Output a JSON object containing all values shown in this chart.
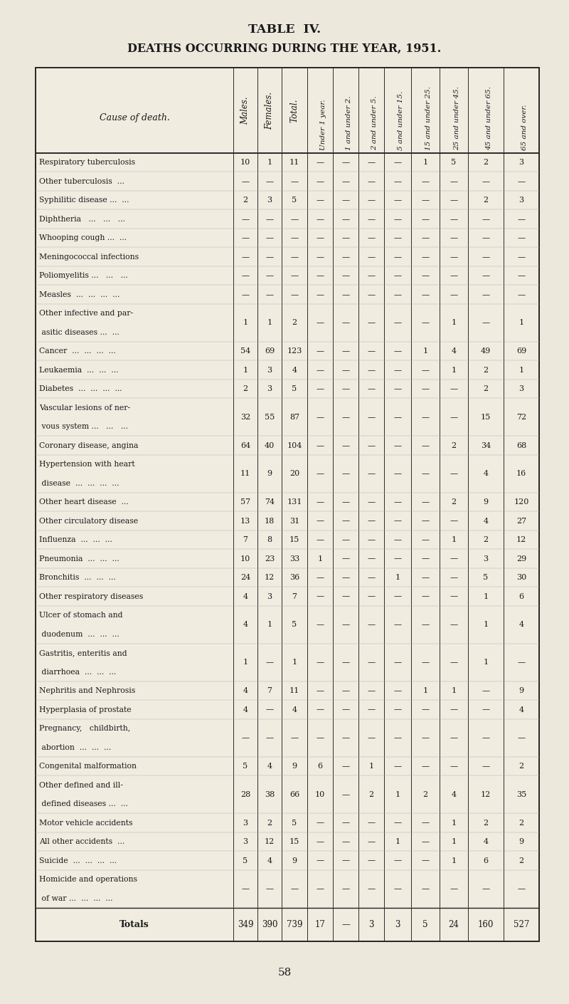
{
  "title1": "TABLE  IV.",
  "title2": "DEATHS OCCURRING DURING THE YEAR, 1951.",
  "page_number": "58",
  "rows": [
    {
      "cause": [
        "Respiratory tuberculosis"
      ],
      "m": "10",
      "f": "1",
      "t": "11",
      "u1": "—",
      "1u2": "—",
      "2u5": "—",
      "5u15": "—",
      "15u25": "1",
      "25u45": "5",
      "45u65": "2",
      "65p": "3"
    },
    {
      "cause": [
        "Other tuberculosis  ..."
      ],
      "m": "—",
      "f": "—",
      "t": "—",
      "u1": "—",
      "1u2": "—",
      "2u5": "—",
      "5u15": "—",
      "15u25": "—",
      "25u45": "—",
      "45u65": "—",
      "65p": "—"
    },
    {
      "cause": [
        "Syphilitic disease ...  ..."
      ],
      "m": "2",
      "f": "3",
      "t": "5",
      "u1": "—",
      "1u2": "—",
      "2u5": "—",
      "5u15": "—",
      "15u25": "—",
      "25u45": "—",
      "45u65": "2",
      "65p": "3"
    },
    {
      "cause": [
        "Diphtheria   ...   ...   ..."
      ],
      "m": "—",
      "f": "—",
      "t": "—",
      "u1": "—",
      "1u2": "—",
      "2u5": "—",
      "5u15": "—",
      "15u25": "—",
      "25u45": "—",
      "45u65": "—",
      "65p": "—"
    },
    {
      "cause": [
        "Whooping cough ...  ..."
      ],
      "m": "—",
      "f": "—",
      "t": "—",
      "u1": "—",
      "1u2": "—",
      "2u5": "—",
      "5u15": "—",
      "15u25": "—",
      "25u45": "—",
      "45u65": "—",
      "65p": "—"
    },
    {
      "cause": [
        "Meningococcal infections"
      ],
      "m": "—",
      "f": "—",
      "t": "—",
      "u1": "—",
      "1u2": "—",
      "2u5": "—",
      "5u15": "—",
      "15u25": "—",
      "25u45": "—",
      "45u65": "—",
      "65p": "—"
    },
    {
      "cause": [
        "Poliomyelitis ...   ...   ..."
      ],
      "m": "—",
      "f": "—",
      "t": "—",
      "u1": "—",
      "1u2": "—",
      "2u5": "—",
      "5u15": "—",
      "15u25": "—",
      "25u45": "—",
      "45u65": "—",
      "65p": "—"
    },
    {
      "cause": [
        "Measles  ...  ...  ...  ..."
      ],
      "m": "—",
      "f": "—",
      "t": "—",
      "u1": "—",
      "1u2": "—",
      "2u5": "—",
      "5u15": "—",
      "15u25": "—",
      "25u45": "—",
      "45u65": "—",
      "65p": "—"
    },
    {
      "cause": [
        "Other infective and par-",
        " asitic diseases ...  ..."
      ],
      "m": "1",
      "f": "1",
      "t": "2",
      "u1": "—",
      "1u2": "—",
      "2u5": "—",
      "5u15": "—",
      "15u25": "—",
      "25u45": "1",
      "45u65": "—",
      "65p": "1"
    },
    {
      "cause": [
        "Cancer  ...  ...  ...  ..."
      ],
      "m": "54",
      "f": "69",
      "t": "123",
      "u1": "—",
      "1u2": "—",
      "2u5": "—",
      "5u15": "—",
      "15u25": "1",
      "25u45": "4",
      "45u65": "49",
      "65p": "69"
    },
    {
      "cause": [
        "Leukaemia  ...  ...  ..."
      ],
      "m": "1",
      "f": "3",
      "t": "4",
      "u1": "—",
      "1u2": "—",
      "2u5": "—",
      "5u15": "—",
      "15u25": "—",
      "25u45": "1",
      "45u65": "2",
      "65p": "1"
    },
    {
      "cause": [
        "Diabetes  ...  ...  ...  ..."
      ],
      "m": "2",
      "f": "3",
      "t": "5",
      "u1": "—",
      "1u2": "—",
      "2u5": "—",
      "5u15": "—",
      "15u25": "—",
      "25u45": "—",
      "45u65": "2",
      "65p": "3"
    },
    {
      "cause": [
        "Vascular lesions of ner-",
        " vous system ...   ...   ..."
      ],
      "m": "32",
      "f": "55",
      "t": "87",
      "u1": "—",
      "1u2": "—",
      "2u5": "—",
      "5u15": "—",
      "15u25": "—",
      "25u45": "—",
      "45u65": "15",
      "65p": "72"
    },
    {
      "cause": [
        "Coronary disease, angina"
      ],
      "m": "64",
      "f": "40",
      "t": "104",
      "u1": "—",
      "1u2": "—",
      "2u5": "—",
      "5u15": "—",
      "15u25": "—",
      "25u45": "2",
      "45u65": "34",
      "65p": "68"
    },
    {
      "cause": [
        "Hypertension with heart",
        " disease  ...  ...  ...  ..."
      ],
      "m": "11",
      "f": "9",
      "t": "20",
      "u1": "—",
      "1u2": "—",
      "2u5": "—",
      "5u15": "—",
      "15u25": "—",
      "25u45": "—",
      "45u65": "4",
      "65p": "16"
    },
    {
      "cause": [
        "Other heart disease  ..."
      ],
      "m": "57",
      "f": "74",
      "t": "131",
      "u1": "—",
      "1u2": "—",
      "2u5": "—",
      "5u15": "—",
      "15u25": "—",
      "25u45": "2",
      "45u65": "9",
      "65p": "120"
    },
    {
      "cause": [
        "Other circulatory disease"
      ],
      "m": "13",
      "f": "18",
      "t": "31",
      "u1": "—",
      "1u2": "—",
      "2u5": "—",
      "5u15": "—",
      "15u25": "—",
      "25u45": "—",
      "45u65": "4",
      "65p": "27"
    },
    {
      "cause": [
        "Influenza  ...  ...  ..."
      ],
      "m": "7",
      "f": "8",
      "t": "15",
      "u1": "—",
      "1u2": "—",
      "2u5": "—",
      "5u15": "—",
      "15u25": "—",
      "25u45": "1",
      "45u65": "2",
      "65p": "12"
    },
    {
      "cause": [
        "Pneumonia  ...  ...  ..."
      ],
      "m": "10",
      "f": "23",
      "t": "33",
      "u1": "1",
      "1u2": "—",
      "2u5": "—",
      "5u15": "—",
      "15u25": "—",
      "25u45": "—",
      "45u65": "3",
      "65p": "29"
    },
    {
      "cause": [
        "Bronchitis  ...  ...  ..."
      ],
      "m": "24",
      "f": "12",
      "t": "36",
      "u1": "—",
      "1u2": "—",
      "2u5": "—",
      "5u15": "1",
      "15u25": "—",
      "25u45": "—",
      "45u65": "5",
      "65p": "30"
    },
    {
      "cause": [
        "Other respiratory diseases"
      ],
      "m": "4",
      "f": "3",
      "t": "7",
      "u1": "—",
      "1u2": "—",
      "2u5": "—",
      "5u15": "—",
      "15u25": "—",
      "25u45": "—",
      "45u65": "1",
      "65p": "6"
    },
    {
      "cause": [
        "Ulcer of stomach and",
        " duodenum  ...  ...  ..."
      ],
      "m": "4",
      "f": "1",
      "t": "5",
      "u1": "—",
      "1u2": "—",
      "2u5": "—",
      "5u15": "—",
      "15u25": "—",
      "25u45": "—",
      "45u65": "1",
      "65p": "4"
    },
    {
      "cause": [
        "Gastritis, enteritis and",
        " diarrhoea  ...  ...  ..."
      ],
      "m": "1",
      "f": "—",
      "t": "1",
      "u1": "—",
      "1u2": "—",
      "2u5": "—",
      "5u15": "—",
      "15u25": "—",
      "25u45": "—",
      "45u65": "1",
      "65p": "—"
    },
    {
      "cause": [
        "Nephritis and Nephrosis"
      ],
      "m": "4",
      "f": "7",
      "t": "11",
      "u1": "—",
      "1u2": "—",
      "2u5": "—",
      "5u15": "—",
      "15u25": "1",
      "25u45": "1",
      "45u65": "—",
      "65p": "9"
    },
    {
      "cause": [
        "Hyperplasia of prostate"
      ],
      "m": "4",
      "f": "—",
      "t": "4",
      "u1": "—",
      "1u2": "—",
      "2u5": "—",
      "5u15": "—",
      "15u25": "—",
      "25u45": "—",
      "45u65": "—",
      "65p": "4"
    },
    {
      "cause": [
        "Pregnancy,   childbirth,",
        " abortion  ...  ...  ..."
      ],
      "m": "—",
      "f": "—",
      "t": "—",
      "u1": "—",
      "1u2": "—",
      "2u5": "—",
      "5u15": "—",
      "15u25": "—",
      "25u45": "—",
      "45u65": "—",
      "65p": "—"
    },
    {
      "cause": [
        "Congenital malformation"
      ],
      "m": "5",
      "f": "4",
      "t": "9",
      "u1": "6",
      "1u2": "—",
      "2u5": "1",
      "5u15": "—",
      "15u25": "—",
      "25u45": "—",
      "45u65": "—",
      "65p": "2"
    },
    {
      "cause": [
        "Other defined and ill-",
        " defined diseases ...  ..."
      ],
      "m": "28",
      "f": "38",
      "t": "66",
      "u1": "10",
      "1u2": "—",
      "2u5": "2",
      "5u15": "1",
      "15u25": "2",
      "25u45": "4",
      "45u65": "12",
      "65p": "35"
    },
    {
      "cause": [
        "Motor vehicle accidents"
      ],
      "m": "3",
      "f": "2",
      "t": "5",
      "u1": "—",
      "1u2": "—",
      "2u5": "—",
      "5u15": "—",
      "15u25": "—",
      "25u45": "1",
      "45u65": "2",
      "65p": "2"
    },
    {
      "cause": [
        "All other accidents  ..."
      ],
      "m": "3",
      "f": "12",
      "t": "15",
      "u1": "—",
      "1u2": "—",
      "2u5": "—",
      "5u15": "1",
      "15u25": "—",
      "25u45": "1",
      "45u65": "4",
      "65p": "9"
    },
    {
      "cause": [
        "Suicide  ...  ...  ...  ..."
      ],
      "m": "5",
      "f": "4",
      "t": "9",
      "u1": "—",
      "1u2": "—",
      "2u5": "—",
      "5u15": "—",
      "15u25": "—",
      "25u45": "1",
      "45u65": "6",
      "65p": "2"
    },
    {
      "cause": [
        "Homicide and operations",
        " of war ...  ...  ...  ..."
      ],
      "m": "—",
      "f": "—",
      "t": "—",
      "u1": "—",
      "1u2": "—",
      "2u5": "—",
      "5u15": "—",
      "15u25": "—",
      "25u45": "—",
      "45u65": "—",
      "65p": "—"
    }
  ],
  "totals": {
    "cause": "Totals",
    "m": "349",
    "f": "390",
    "t": "739",
    "u1": "17",
    "1u2": "—",
    "2u5": "3",
    "5u15": "3",
    "15u25": "5",
    "25u45": "24",
    "45u65": "160",
    "65p": "527"
  },
  "bg_color": "#ece8dc",
  "text_color": "#1a1a1a",
  "table_bg": "#f2eed e"
}
